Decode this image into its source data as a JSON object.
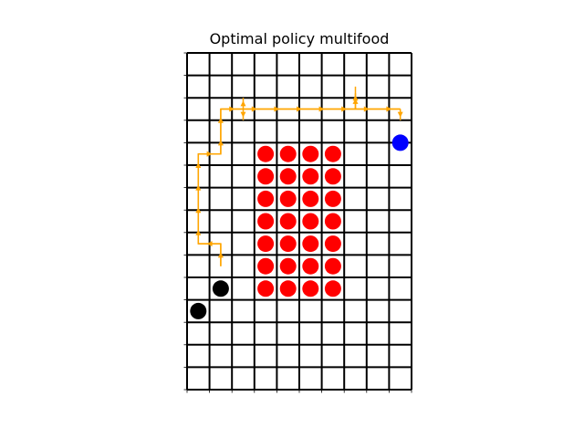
{
  "title": "Optimal policy multifood",
  "chart_data": {
    "type": "grid-policy",
    "title": "Optimal policy multifood",
    "grid": {
      "cols": 10,
      "rows": 15
    },
    "colors": {
      "grid": "#000000",
      "path": "#ffa500",
      "food": "#ff0000",
      "goal": "#0000ff",
      "agent": "#000000"
    },
    "food": [
      [
        3,
        4
      ],
      [
        4,
        4
      ],
      [
        5,
        4
      ],
      [
        6,
        4
      ],
      [
        3,
        5
      ],
      [
        4,
        5
      ],
      [
        5,
        5
      ],
      [
        6,
        5
      ],
      [
        3,
        6
      ],
      [
        4,
        6
      ],
      [
        5,
        6
      ],
      [
        6,
        6
      ],
      [
        3,
        7
      ],
      [
        4,
        7
      ],
      [
        5,
        7
      ],
      [
        6,
        7
      ],
      [
        3,
        8
      ],
      [
        4,
        8
      ],
      [
        5,
        8
      ],
      [
        6,
        8
      ],
      [
        3,
        9
      ],
      [
        4,
        9
      ],
      [
        5,
        9
      ],
      [
        6,
        9
      ],
      [
        3,
        10
      ],
      [
        4,
        10
      ],
      [
        5,
        10
      ],
      [
        6,
        10
      ]
    ],
    "goal": [
      [
        9,
        3.5
      ]
    ],
    "agents": [
      [
        1.5,
        10
      ],
      [
        0.5,
        11
      ]
    ],
    "path": [
      [
        1.5,
        9.5
      ],
      [
        1.5,
        8.5
      ],
      [
        0.5,
        8.5
      ],
      [
        0.5,
        7.5
      ],
      [
        0.5,
        6.5
      ],
      [
        0.5,
        5.5
      ],
      [
        0.5,
        4.5
      ],
      [
        1.5,
        4.5
      ],
      [
        1.5,
        3.5
      ],
      [
        1.5,
        2.5
      ],
      [
        2.5,
        2.5
      ],
      [
        3.5,
        2.5
      ],
      [
        4.5,
        2.5
      ],
      [
        5.5,
        2.5
      ],
      [
        6.5,
        2.5
      ],
      [
        7.5,
        2.5
      ],
      [
        8.5,
        2.5
      ],
      [
        9.5,
        2.5
      ]
    ],
    "path_arrows": [
      [
        1.5,
        9.5,
        1.5,
        8.5
      ],
      [
        1.5,
        8.5,
        0.5,
        8.5
      ],
      [
        0.5,
        8.5,
        0.5,
        7.5
      ],
      [
        0.5,
        7.5,
        0.5,
        6.5
      ],
      [
        0.5,
        6.5,
        0.5,
        5.5
      ],
      [
        0.5,
        5.5,
        0.5,
        4.5
      ],
      [
        0.5,
        4.5,
        1.5,
        4.5
      ],
      [
        1.5,
        4.5,
        1.5,
        3.5
      ],
      [
        1.5,
        3.5,
        1.5,
        2.5
      ],
      [
        1.5,
        2.5,
        2.5,
        2.5
      ],
      [
        2.5,
        2.5,
        3.5,
        2.5
      ],
      [
        3.5,
        2.5,
        4.5,
        2.5
      ],
      [
        4.5,
        2.5,
        5.5,
        2.5
      ],
      [
        5.5,
        2.5,
        6.5,
        2.5
      ],
      [
        6.5,
        2.5,
        7.5,
        2.5
      ],
      [
        7.5,
        2.5,
        8.5,
        2.5
      ],
      [
        8.5,
        2.5,
        9.5,
        2.5
      ],
      [
        9.5,
        2.5,
        9.5,
        3
      ],
      [
        2.5,
        2.5,
        2.5,
        3.0
      ],
      [
        2.5,
        2.5,
        2.5,
        2.0
      ],
      [
        7.5,
        2.5,
        7.5,
        1.5
      ],
      [
        7.5,
        2.5,
        7.5,
        1.8
      ]
    ]
  }
}
